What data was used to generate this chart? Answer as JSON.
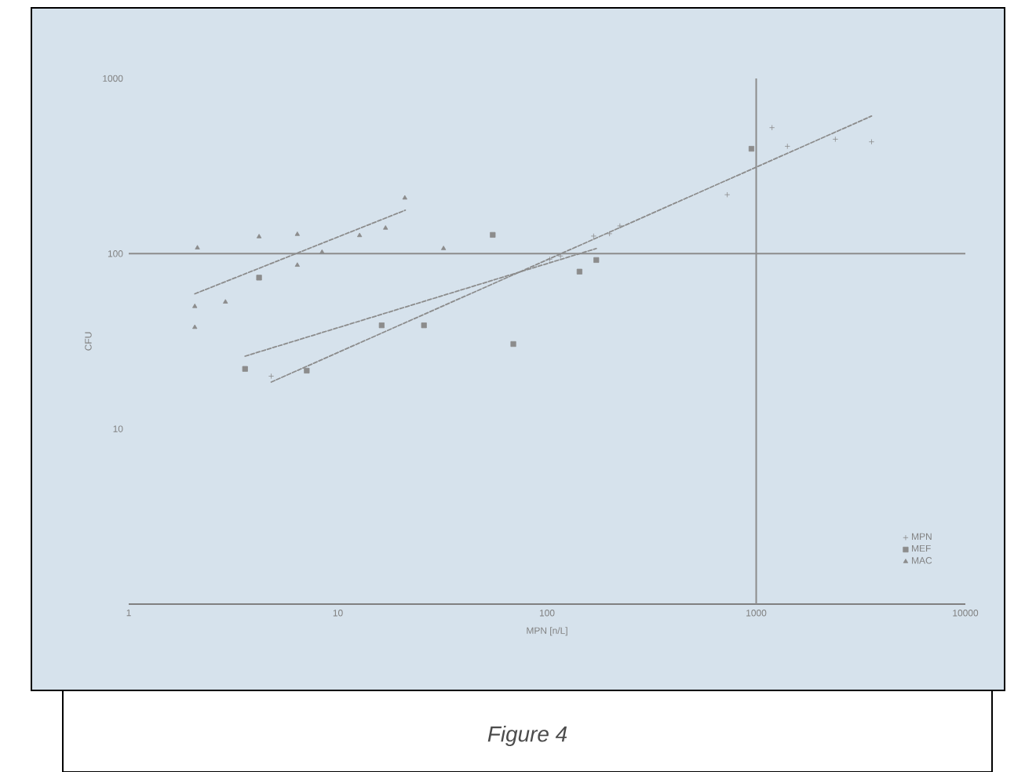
{
  "chart_data": {
    "type": "scatter",
    "xlabel": "MPN [n/L]",
    "ylabel": "CFU",
    "log": "xy",
    "xlim": [
      1,
      10000
    ],
    "ylim": [
      1,
      1000
    ],
    "xticks": [
      1,
      10,
      100,
      1000,
      10000
    ],
    "yticks": [
      10,
      100,
      1000
    ],
    "legend": "bottom right",
    "annotations": [
      "Figure 4"
    ],
    "ref_lines": [
      {
        "axis": "y",
        "value": 100,
        "color": "#8c8c8c"
      },
      {
        "axis": "x",
        "value": 1000,
        "color": "#8c8c8c"
      }
    ],
    "series": [
      {
        "name": "MPN",
        "color": "#8c8c8c",
        "marker": "cross",
        "x": [
          4.8,
          103,
          116,
          167,
          199,
          223,
          727,
          1190,
          1410,
          2390,
          3560
        ],
        "values": [
          20,
          93,
          97,
          126,
          130,
          144,
          217,
          524,
          410,
          450,
          435
        ]
      },
      {
        "name": "MEF",
        "color": "#8c8c8c",
        "marker": "square",
        "x": [
          4.2,
          3.6,
          7.1,
          16.2,
          25.8,
          55,
          69,
          143,
          172,
          949
        ],
        "values": [
          73,
          22,
          21.5,
          39,
          39,
          128,
          30.5,
          79,
          92,
          397
        ]
      },
      {
        "name": "MAC",
        "color": "#8c8c8c",
        "marker": "triangle",
        "x": [
          2.13,
          4.2,
          6.4,
          12.7,
          16.9,
          20.9,
          2.07,
          2.9,
          2.07,
          6.4,
          8.4,
          32
        ],
        "values": [
          108,
          125,
          129,
          127,
          140,
          208,
          50,
          53,
          38,
          86,
          102,
          107
        ]
      },
      {
        "type": "line",
        "color": "#8c8c8c",
        "line_style": "dashed",
        "x": [
          2.07,
          21
        ],
        "values": [
          59,
          177
        ]
      },
      {
        "type": "line",
        "color": "#8c8c8c",
        "line_style": "dashed",
        "x": [
          3.6,
          172
        ],
        "values": [
          26,
          107
        ]
      },
      {
        "type": "line",
        "color": "#8c8c8c",
        "line_style": "dashed",
        "x": [
          4.8,
          3560
        ],
        "values": [
          18.5,
          610
        ]
      }
    ]
  }
}
